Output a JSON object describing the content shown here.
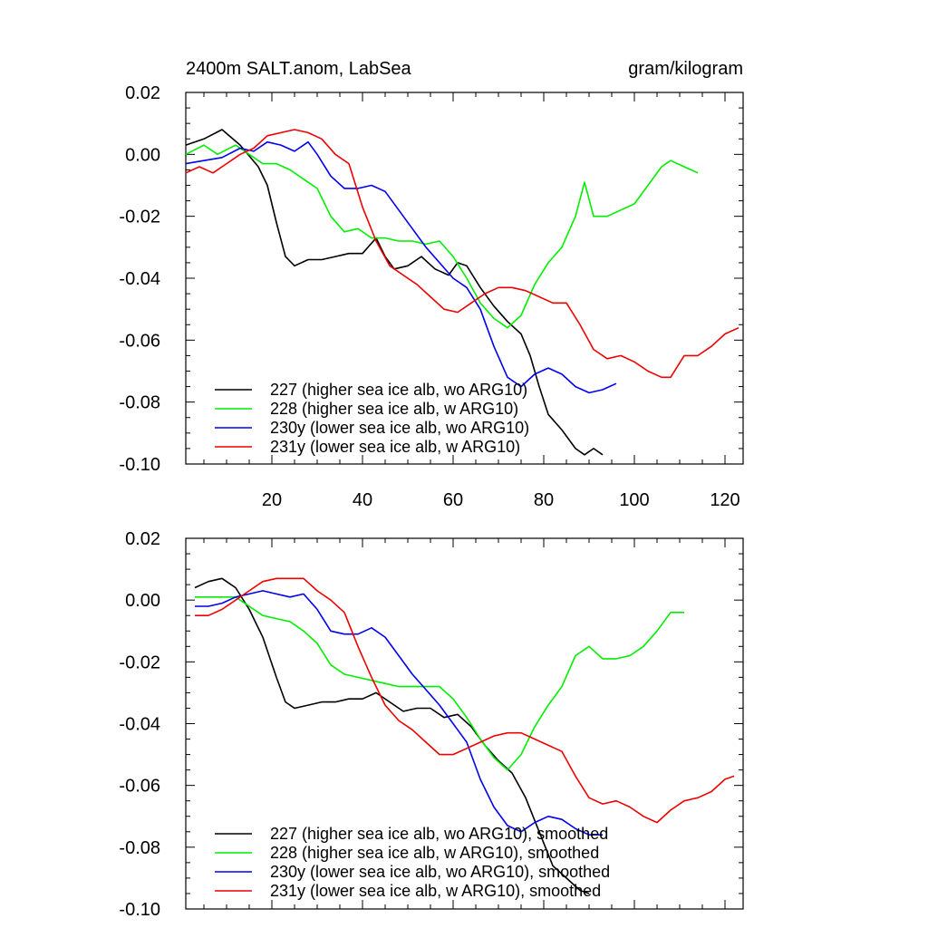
{
  "chart_data": [
    {
      "type": "line",
      "title": "2400m SALT.anom, LabSea",
      "units": "gram/kilogram",
      "xlim": [
        1,
        124
      ],
      "ylim": [
        -0.1,
        0.02
      ],
      "xticks": [
        20,
        40,
        60,
        80,
        100,
        120
      ],
      "xtick_labels": [
        "20",
        "40",
        "60",
        "80",
        "100",
        "120"
      ],
      "yticks": [
        0.02,
        0.0,
        -0.02,
        -0.04,
        -0.06,
        -0.08,
        -0.1
      ],
      "ytick_labels": [
        "0.02",
        "0.00",
        "-0.02",
        "-0.04",
        "-0.06",
        "-0.08",
        "-0.10"
      ],
      "legend_position": "bottom-left",
      "series": [
        {
          "name": "227 (higher sea ice alb, wo ARG10)",
          "color": "#000000",
          "x": [
            1,
            5,
            9,
            13,
            17,
            19,
            21,
            23,
            25,
            28,
            31,
            34,
            37,
            40,
            43,
            45,
            47,
            50,
            53,
            56,
            59,
            61,
            63,
            66,
            69,
            72,
            75,
            77,
            79,
            81,
            84,
            87,
            89,
            91,
            93
          ],
          "y": [
            0.003,
            0.005,
            0.008,
            0.003,
            -0.004,
            -0.01,
            -0.022,
            -0.033,
            -0.036,
            -0.034,
            -0.034,
            -0.033,
            -0.032,
            -0.032,
            -0.027,
            -0.033,
            -0.037,
            -0.036,
            -0.033,
            -0.037,
            -0.039,
            -0.035,
            -0.036,
            -0.043,
            -0.049,
            -0.054,
            -0.058,
            -0.065,
            -0.075,
            -0.084,
            -0.089,
            -0.095,
            -0.097,
            -0.095,
            -0.097
          ]
        },
        {
          "name": "228 (higher sea ice alb, w ARG10)",
          "color": "#00ee00",
          "x": [
            1,
            5,
            8,
            12,
            15,
            18,
            21,
            24,
            27,
            30,
            33,
            36,
            39,
            42,
            45,
            48,
            51,
            54,
            57,
            60,
            63,
            66,
            69,
            72,
            75,
            78,
            81,
            84,
            87,
            89,
            91,
            94,
            97,
            100,
            103,
            106,
            108,
            111,
            114
          ],
          "y": [
            0.0,
            0.003,
            0.0,
            0.003,
            0.0,
            -0.003,
            -0.003,
            -0.005,
            -0.008,
            -0.011,
            -0.02,
            -0.025,
            -0.024,
            -0.027,
            -0.027,
            -0.028,
            -0.028,
            -0.029,
            -0.028,
            -0.033,
            -0.04,
            -0.048,
            -0.053,
            -0.056,
            -0.052,
            -0.042,
            -0.035,
            -0.03,
            -0.02,
            -0.009,
            -0.02,
            -0.02,
            -0.018,
            -0.016,
            -0.01,
            -0.004,
            -0.002,
            -0.004,
            -0.006
          ]
        },
        {
          "name": "230y (lower sea ice alb, wo ARG10)",
          "color": "#0000ee",
          "x": [
            1,
            5,
            9,
            13,
            16,
            19,
            22,
            25,
            28,
            30,
            33,
            36,
            39,
            42,
            45,
            48,
            51,
            54,
            57,
            60,
            63,
            66,
            69,
            72,
            75,
            78,
            81,
            84,
            87,
            90,
            93,
            96
          ],
          "y": [
            -0.003,
            -0.002,
            -0.001,
            0.002,
            0.001,
            0.004,
            0.003,
            0.001,
            0.004,
            0.0,
            -0.007,
            -0.011,
            -0.011,
            -0.01,
            -0.012,
            -0.018,
            -0.024,
            -0.03,
            -0.035,
            -0.04,
            -0.043,
            -0.05,
            -0.062,
            -0.072,
            -0.075,
            -0.071,
            -0.069,
            -0.071,
            -0.075,
            -0.077,
            -0.076,
            -0.074
          ]
        },
        {
          "name": "231y (lower sea ice alb, w ARG10)",
          "color": "#ee0000",
          "x": [
            1,
            4,
            7,
            10,
            13,
            16,
            19,
            22,
            25,
            28,
            31,
            34,
            37,
            40,
            43,
            46,
            49,
            52,
            55,
            58,
            61,
            64,
            67,
            70,
            73,
            76,
            79,
            82,
            85,
            88,
            91,
            94,
            97,
            100,
            103,
            106,
            108,
            111,
            114,
            117,
            120,
            123
          ],
          "y": [
            -0.006,
            -0.004,
            -0.006,
            -0.003,
            0.0,
            0.002,
            0.006,
            0.007,
            0.008,
            0.007,
            0.005,
            0.0,
            -0.003,
            -0.017,
            -0.028,
            -0.036,
            -0.039,
            -0.042,
            -0.046,
            -0.05,
            -0.051,
            -0.048,
            -0.045,
            -0.043,
            -0.043,
            -0.044,
            -0.046,
            -0.048,
            -0.048,
            -0.055,
            -0.063,
            -0.066,
            -0.065,
            -0.067,
            -0.07,
            -0.072,
            -0.072,
            -0.065,
            -0.065,
            -0.062,
            -0.058,
            -0.056
          ]
        }
      ]
    },
    {
      "type": "line",
      "title": "",
      "units": "",
      "xlim": [
        1,
        124
      ],
      "ylim": [
        -0.1,
        0.02
      ],
      "xticks": [
        20,
        40,
        60,
        80,
        100,
        120
      ],
      "xtick_labels": [],
      "yticks": [
        0.02,
        0.0,
        -0.02,
        -0.04,
        -0.06,
        -0.08,
        -0.1
      ],
      "ytick_labels": [
        "0.02",
        "0.00",
        "-0.02",
        "-0.04",
        "-0.06",
        "-0.08",
        "-0.10"
      ],
      "legend_position": "bottom-left",
      "series": [
        {
          "name": "227 (higher sea ice alb, wo ARG10), smoothed",
          "color": "#000000",
          "x": [
            3,
            6,
            9,
            12,
            15,
            18,
            21,
            23,
            25,
            28,
            31,
            34,
            37,
            40,
            43,
            46,
            49,
            52,
            55,
            58,
            61,
            64,
            67,
            70,
            73,
            76,
            79,
            82,
            85,
            88,
            90
          ],
          "y": [
            0.004,
            0.006,
            0.007,
            0.004,
            -0.003,
            -0.012,
            -0.025,
            -0.033,
            -0.035,
            -0.034,
            -0.033,
            -0.033,
            -0.032,
            -0.032,
            -0.03,
            -0.033,
            -0.036,
            -0.035,
            -0.035,
            -0.038,
            -0.037,
            -0.041,
            -0.047,
            -0.052,
            -0.056,
            -0.064,
            -0.075,
            -0.086,
            -0.09,
            -0.094,
            -0.095
          ]
        },
        {
          "name": "228 (higher sea ice alb, w ARG10), smoothed",
          "color": "#00ee00",
          "x": [
            3,
            6,
            9,
            12,
            15,
            18,
            21,
            24,
            27,
            30,
            33,
            36,
            39,
            42,
            45,
            48,
            51,
            54,
            57,
            60,
            63,
            66,
            69,
            72,
            75,
            78,
            81,
            84,
            87,
            90,
            93,
            96,
            99,
            102,
            105,
            108,
            111
          ],
          "y": [
            0.001,
            0.001,
            0.001,
            0.001,
            -0.002,
            -0.005,
            -0.006,
            -0.007,
            -0.01,
            -0.014,
            -0.021,
            -0.024,
            -0.025,
            -0.026,
            -0.027,
            -0.028,
            -0.028,
            -0.028,
            -0.028,
            -0.032,
            -0.038,
            -0.045,
            -0.051,
            -0.055,
            -0.05,
            -0.041,
            -0.034,
            -0.028,
            -0.018,
            -0.015,
            -0.019,
            -0.019,
            -0.018,
            -0.015,
            -0.01,
            -0.004,
            -0.004
          ]
        },
        {
          "name": "230y (lower sea ice alb, wo ARG10), smoothed",
          "color": "#0000ee",
          "x": [
            3,
            6,
            9,
            12,
            15,
            18,
            21,
            24,
            27,
            30,
            33,
            36,
            39,
            42,
            45,
            48,
            51,
            54,
            57,
            60,
            63,
            66,
            69,
            72,
            75,
            78,
            81,
            84,
            87,
            90,
            93
          ],
          "y": [
            -0.002,
            -0.002,
            -0.001,
            0.001,
            0.002,
            0.003,
            0.002,
            0.001,
            0.002,
            -0.003,
            -0.01,
            -0.011,
            -0.011,
            -0.009,
            -0.012,
            -0.018,
            -0.024,
            -0.029,
            -0.034,
            -0.04,
            -0.046,
            -0.058,
            -0.067,
            -0.073,
            -0.075,
            -0.072,
            -0.07,
            -0.071,
            -0.074,
            -0.076,
            -0.076
          ]
        },
        {
          "name": "231y (lower sea ice alb, w ARG10), smoothed",
          "color": "#ee0000",
          "x": [
            3,
            6,
            9,
            12,
            15,
            18,
            21,
            24,
            27,
            30,
            33,
            36,
            39,
            42,
            45,
            48,
            51,
            54,
            57,
            60,
            63,
            66,
            69,
            72,
            75,
            78,
            81,
            84,
            87,
            90,
            93,
            96,
            99,
            102,
            105,
            108,
            111,
            114,
            117,
            120,
            122
          ],
          "y": [
            -0.005,
            -0.005,
            -0.003,
            0.0,
            0.003,
            0.006,
            0.007,
            0.007,
            0.007,
            0.003,
            0.0,
            -0.004,
            -0.015,
            -0.025,
            -0.034,
            -0.039,
            -0.042,
            -0.046,
            -0.05,
            -0.05,
            -0.048,
            -0.046,
            -0.044,
            -0.043,
            -0.043,
            -0.045,
            -0.047,
            -0.049,
            -0.057,
            -0.064,
            -0.066,
            -0.065,
            -0.067,
            -0.07,
            -0.072,
            -0.068,
            -0.065,
            -0.064,
            -0.062,
            -0.058,
            -0.057
          ]
        }
      ]
    }
  ]
}
